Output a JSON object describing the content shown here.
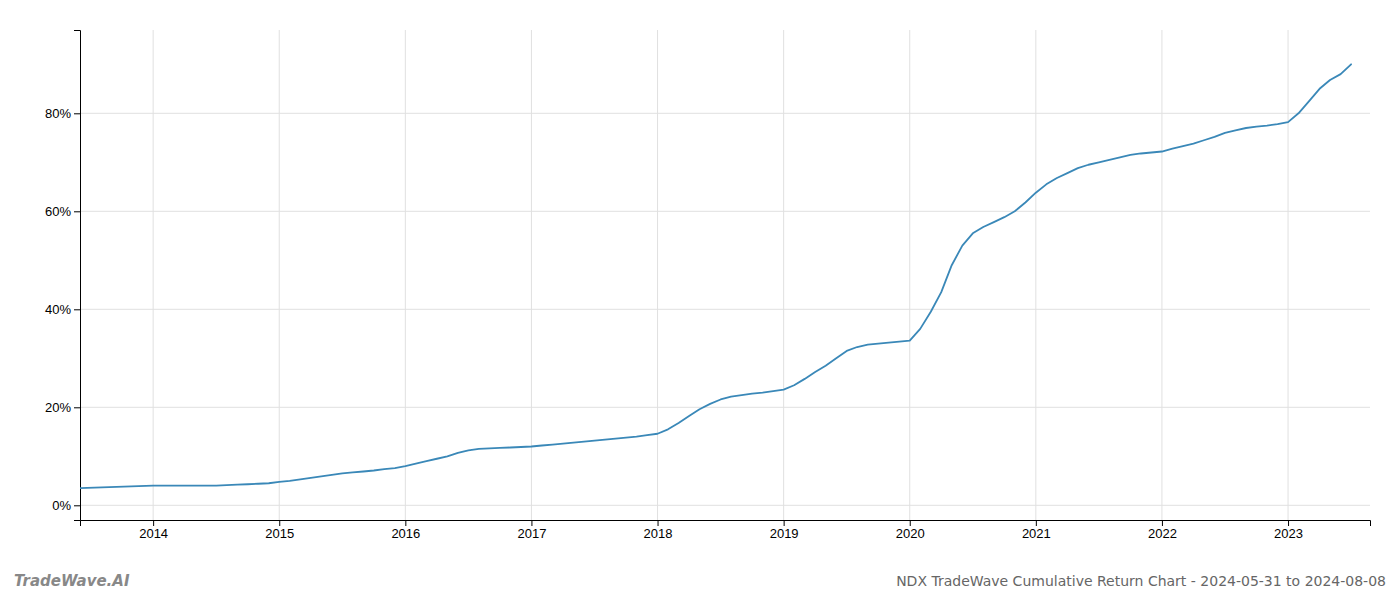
{
  "chart_data": {
    "type": "line",
    "title": "NDX TradeWave Cumulative Return Chart - 2024-05-31 to 2024-08-08",
    "annotations": [
      "TradeWave.AI"
    ],
    "color": "#3a88b8",
    "grid": true,
    "x": [
      2013.42,
      2014.0,
      2014.083,
      2014.167,
      2014.25,
      2014.333,
      2014.417,
      2014.5,
      2014.583,
      2014.667,
      2014.75,
      2014.833,
      2014.917,
      2015.0,
      2015.083,
      2015.167,
      2015.25,
      2015.333,
      2015.417,
      2015.5,
      2015.583,
      2015.667,
      2015.75,
      2015.833,
      2015.917,
      2016.0,
      2016.083,
      2016.167,
      2016.25,
      2016.333,
      2016.417,
      2016.5,
      2016.583,
      2016.667,
      2016.75,
      2016.833,
      2016.917,
      2017.0,
      2017.083,
      2017.167,
      2017.25,
      2017.333,
      2017.417,
      2017.5,
      2017.583,
      2017.667,
      2017.75,
      2017.833,
      2017.917,
      2018.0,
      2018.083,
      2018.167,
      2018.25,
      2018.333,
      2018.417,
      2018.5,
      2018.583,
      2018.667,
      2018.75,
      2018.833,
      2018.917,
      2019.0,
      2019.083,
      2019.167,
      2019.25,
      2019.333,
      2019.417,
      2019.5,
      2019.583,
      2019.667,
      2019.75,
      2019.833,
      2019.917,
      2020.0,
      2020.083,
      2020.167,
      2020.25,
      2020.333,
      2020.417,
      2020.5,
      2020.583,
      2020.667,
      2020.75,
      2020.833,
      2020.917,
      2021.0,
      2021.083,
      2021.167,
      2021.25,
      2021.333,
      2021.417,
      2021.5,
      2021.583,
      2021.667,
      2021.75,
      2021.833,
      2021.917,
      2022.0,
      2022.083,
      2022.167,
      2022.25,
      2022.333,
      2022.417,
      2022.5,
      2022.583,
      2022.667,
      2022.75,
      2022.833,
      2022.917,
      2023.0,
      2023.083,
      2023.167,
      2023.25,
      2023.333,
      2023.417,
      2023.5
    ],
    "values": [
      0.035,
      0.04,
      0.04,
      0.04,
      0.04,
      0.04,
      0.04,
      0.04,
      0.041,
      0.042,
      0.043,
      0.044,
      0.045,
      0.048,
      0.05,
      0.053,
      0.056,
      0.059,
      0.062,
      0.065,
      0.067,
      0.069,
      0.071,
      0.074,
      0.076,
      0.08,
      0.085,
      0.09,
      0.095,
      0.1,
      0.107,
      0.112,
      0.115,
      0.116,
      0.117,
      0.118,
      0.119,
      0.12,
      0.122,
      0.124,
      0.126,
      0.128,
      0.13,
      0.132,
      0.134,
      0.136,
      0.138,
      0.14,
      0.143,
      0.146,
      0.155,
      0.168,
      0.182,
      0.196,
      0.207,
      0.216,
      0.222,
      0.225,
      0.228,
      0.23,
      0.233,
      0.236,
      0.245,
      0.258,
      0.272,
      0.285,
      0.3,
      0.315,
      0.323,
      0.328,
      0.33,
      0.332,
      0.334,
      0.336,
      0.36,
      0.395,
      0.435,
      0.49,
      0.53,
      0.555,
      0.568,
      0.578,
      0.588,
      0.6,
      0.618,
      0.638,
      0.655,
      0.668,
      0.678,
      0.688,
      0.695,
      0.7,
      0.705,
      0.71,
      0.715,
      0.718,
      0.72,
      0.722,
      0.728,
      0.733,
      0.738,
      0.745,
      0.752,
      0.76,
      0.765,
      0.77,
      0.773,
      0.775,
      0.778,
      0.782,
      0.8,
      0.825,
      0.85,
      0.868,
      0.88,
      0.9
    ],
    "xlim": [
      2013.42,
      2023.65
    ],
    "xticks": [
      2014,
      2015,
      2016,
      2017,
      2018,
      2019,
      2020,
      2021,
      2022,
      2023
    ],
    "ylim": [
      -0.03,
      0.97
    ],
    "yticks": [
      {
        "value": 0.0,
        "label": "0%"
      },
      {
        "value": 0.2,
        "label": "20%"
      },
      {
        "value": 0.4,
        "label": "40%"
      },
      {
        "value": 0.6,
        "label": "60%"
      },
      {
        "value": 0.8,
        "label": "80%"
      }
    ]
  }
}
